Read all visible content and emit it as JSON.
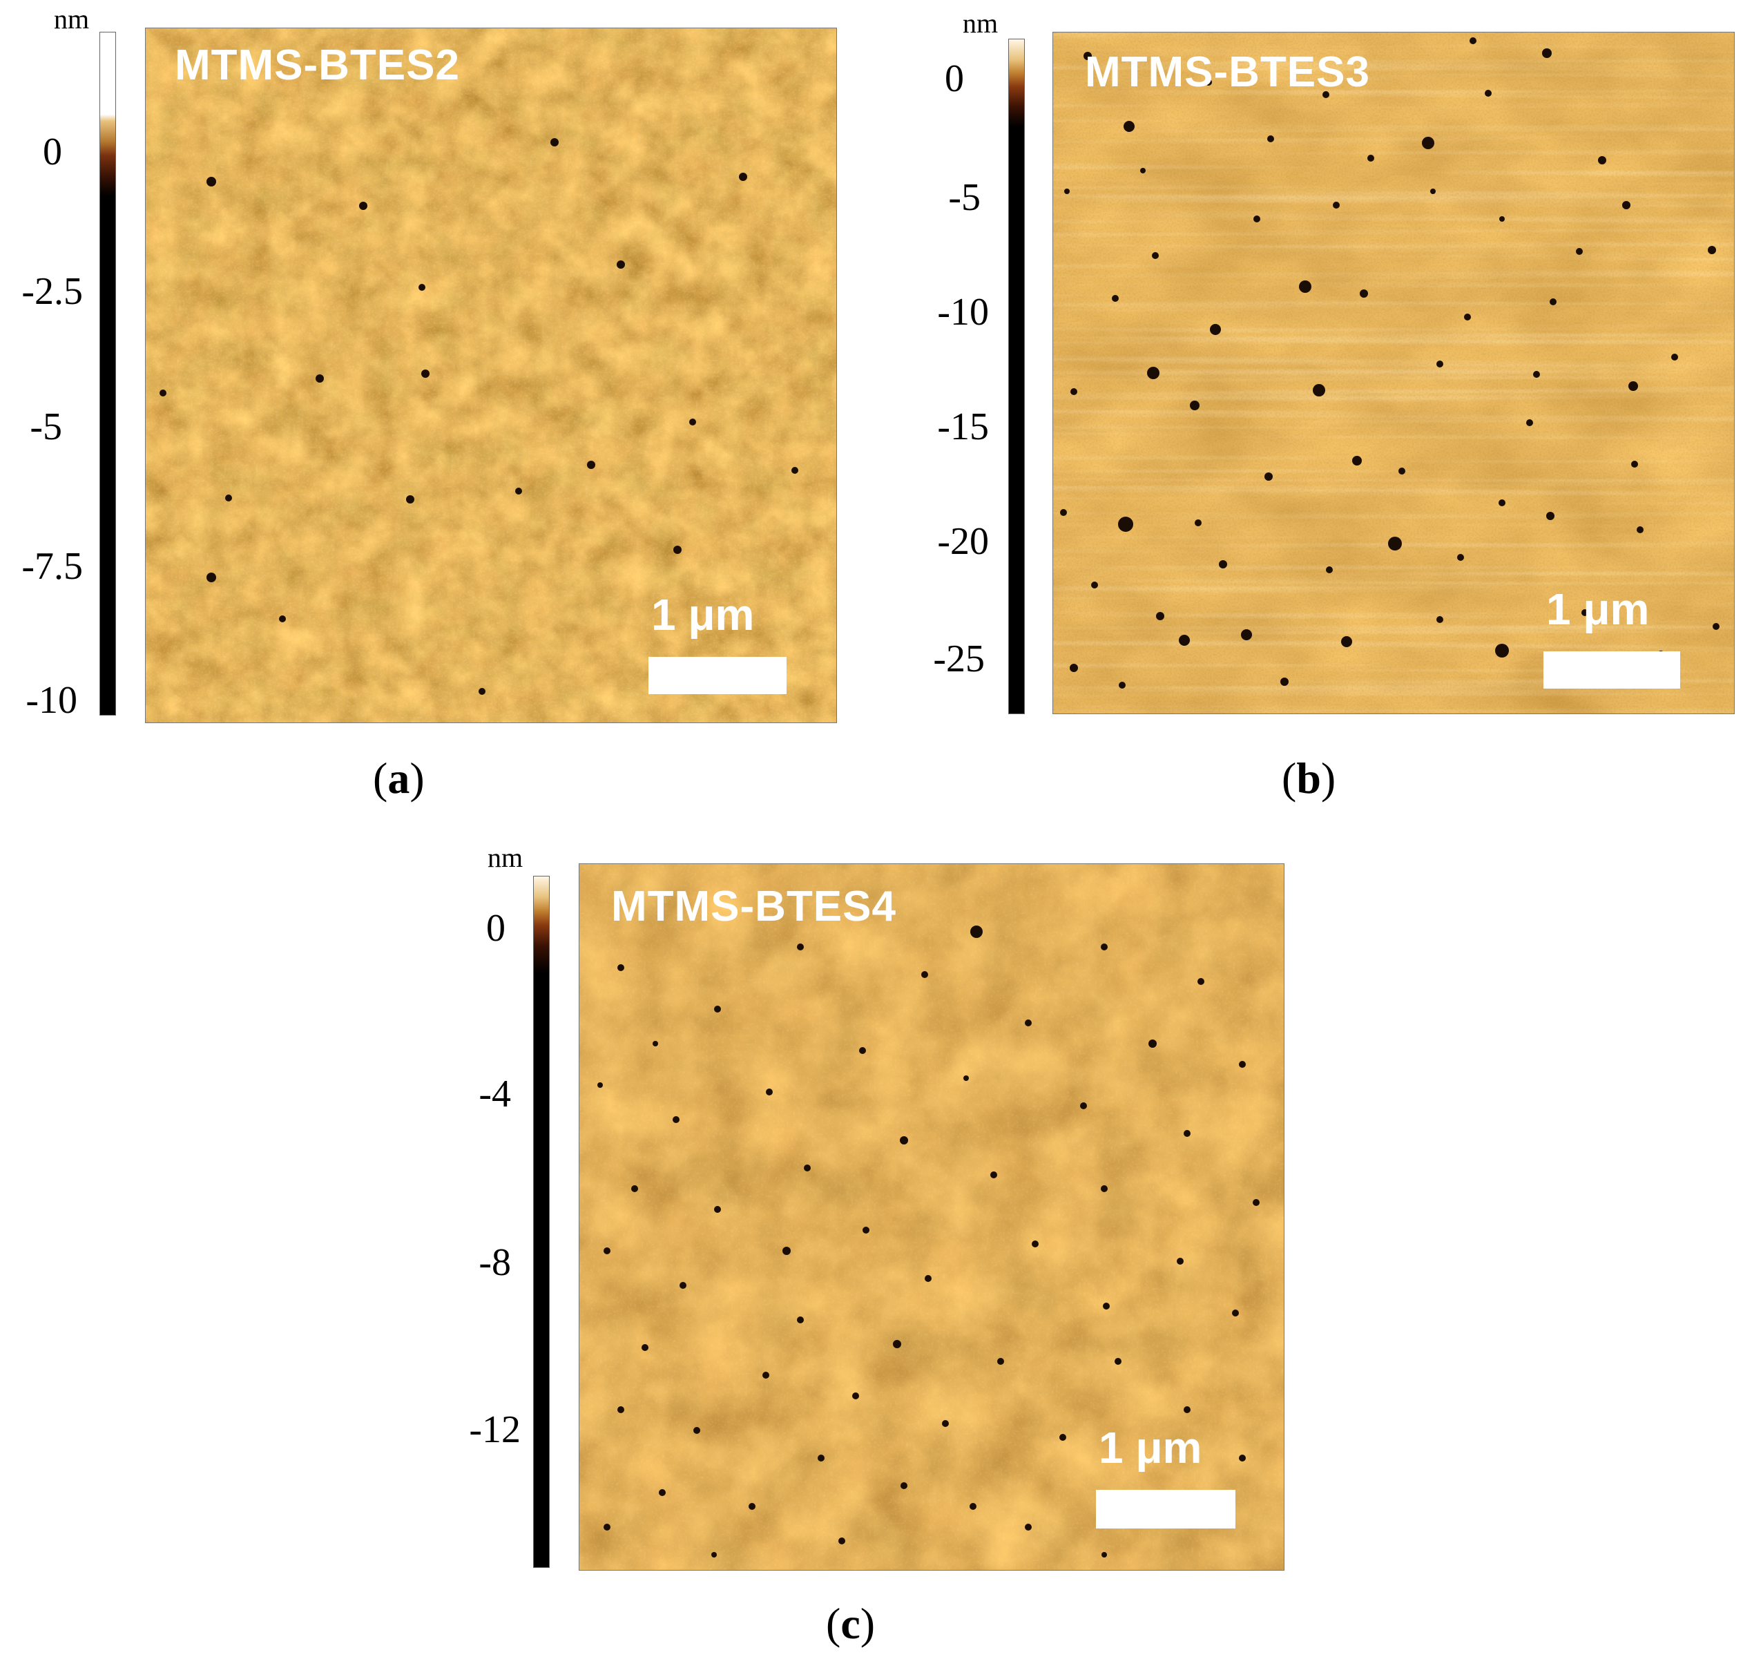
{
  "panels": [
    {
      "id": "a",
      "sample": "MTMS-BTES2",
      "unit": "nm",
      "ticks": [
        "0",
        "-2.5",
        "-5",
        "-7.5",
        "-10"
      ],
      "scale_label": "1 μm",
      "caption_letter": "a"
    },
    {
      "id": "b",
      "sample": "MTMS-BTES3",
      "unit": "nm",
      "ticks": [
        "0",
        "-5",
        "-10",
        "-15",
        "-20",
        "-25"
      ],
      "scale_label": "1 μm",
      "caption_letter": "b"
    },
    {
      "id": "c",
      "sample": "MTMS-BTES4",
      "unit": "nm",
      "ticks": [
        "0",
        "-4",
        "-8",
        "-12"
      ],
      "scale_label": "1 μm",
      "caption_letter": "c"
    }
  ],
  "colors": {
    "afm_base": "#a9661c",
    "afm_dark": "#5a2a08",
    "afm_light": "#f3d28f",
    "pore": "#1a0d05"
  }
}
